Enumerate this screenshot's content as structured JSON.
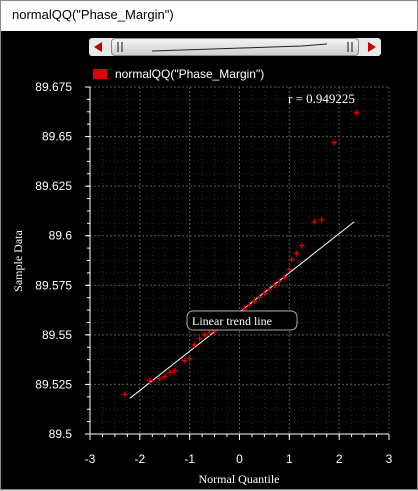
{
  "window": {
    "title": "normalQQ(\"Phase_Margin\")"
  },
  "chart_data": {
    "type": "scatter",
    "series": [
      {
        "name": "normalQQ(\"Phase_Margin\")",
        "color": "#e00000",
        "x": [
          -2.3,
          -1.8,
          -1.6,
          -1.5,
          -1.4,
          -1.3,
          -1.1,
          -1.0,
          -0.9,
          -0.8,
          -0.7,
          -0.6,
          -0.5,
          0.1,
          0.2,
          0.3,
          0.4,
          0.5,
          0.6,
          0.7,
          0.8,
          0.9,
          1.0,
          1.05,
          1.15,
          1.25,
          1.5,
          1.65,
          1.9,
          2.35
        ],
        "y": [
          89.52,
          89.527,
          89.528,
          89.529,
          89.531,
          89.532,
          89.537,
          89.538,
          89.545,
          89.548,
          89.55,
          89.551,
          89.552,
          89.563,
          89.565,
          89.567,
          89.569,
          89.571,
          89.573,
          89.575,
          89.577,
          89.579,
          89.583,
          89.588,
          89.591,
          89.595,
          89.607,
          89.608,
          89.647,
          89.662
        ]
      }
    ],
    "trend_line": {
      "x": [
        -2.2,
        2.3
      ],
      "y": [
        89.518,
        89.607
      ],
      "color": "#ffffff"
    },
    "annotations": {
      "r_value": "r = 0.949225",
      "trend_label": "Linear trend line"
    },
    "xlabel": "Normal Quantile",
    "ylabel": "Sample Data",
    "xlim": [
      -3,
      3
    ],
    "ylim": [
      89.5,
      89.675
    ],
    "xticks": [
      "-3",
      "-2",
      "-1",
      "0",
      "1",
      "2",
      "3"
    ],
    "yticks": [
      "89.5",
      "89.525",
      "89.55",
      "89.575",
      "89.6",
      "89.625",
      "89.65",
      "89.675"
    ],
    "grid": true,
    "legend": "top-left",
    "background": "#000000"
  }
}
